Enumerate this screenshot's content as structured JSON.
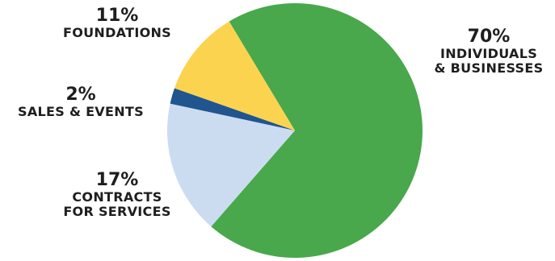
{
  "chart_data": {
    "type": "pie",
    "slices": [
      {
        "label_lines": [
          "INDIVIDUALS",
          "& BUSINESSES"
        ],
        "percent_text": "70%",
        "value": 70,
        "color": "#48a84b"
      },
      {
        "label_lines": [
          "CONTRACTS",
          "FOR SERVICES"
        ],
        "percent_text": "17%",
        "value": 17,
        "color": "#ccdcf0"
      },
      {
        "label_lines": [
          "SALES & EVENTS"
        ],
        "percent_text": "2%",
        "value": 2,
        "color": "#20558f"
      },
      {
        "label_lines": [
          "FOUNDATIONS"
        ],
        "percent_text": "11%",
        "value": 11,
        "color": "#fcd34f"
      }
    ]
  }
}
